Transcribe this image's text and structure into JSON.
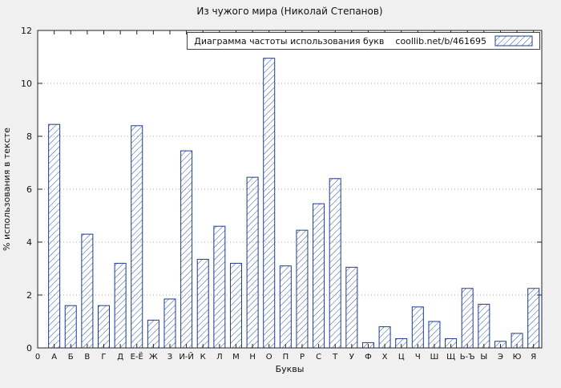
{
  "title": "Из чужого мира (Николай Степанов)",
  "legend": {
    "label": "Диаграмма частоты использования букв",
    "source": "coollib.net/b/461695"
  },
  "chart_data": {
    "type": "bar",
    "title": "Из чужого мира (Николай Степанов)",
    "xlabel": "Буквы",
    "ylabel": "% использования в тексте",
    "origin_label": "0",
    "ylim": [
      0,
      12
    ],
    "yticks": [
      0,
      2,
      4,
      6,
      8,
      10,
      12
    ],
    "grid": true,
    "legend_position": "top-right",
    "categories": [
      "А",
      "Б",
      "В",
      "Г",
      "Д",
      "Е-Ё",
      "Ж",
      "З",
      "И-Й",
      "К",
      "Л",
      "М",
      "Н",
      "О",
      "П",
      "Р",
      "С",
      "Т",
      "У",
      "Ф",
      "Х",
      "Ц",
      "Ч",
      "Ш",
      "Щ",
      "Ь-Ъ",
      "Ы",
      "Э",
      "Ю",
      "Я"
    ],
    "values": [
      8.45,
      1.6,
      4.3,
      1.6,
      3.2,
      8.4,
      1.05,
      1.85,
      7.45,
      3.35,
      4.6,
      3.2,
      6.45,
      10.95,
      3.1,
      4.45,
      5.45,
      6.4,
      3.05,
      0.2,
      0.8,
      0.35,
      1.55,
      1.0,
      0.35,
      2.25,
      1.65,
      0.25,
      0.55,
      2.25
    ],
    "colors": {
      "page_bg": "#f0f0f0",
      "plot_bg": "#ffffff",
      "axis": "#222222",
      "grid": "#aaaaaa",
      "bar_stroke": "#1b3d8f",
      "hatch": "#2d55a5",
      "text": "#111111"
    }
  }
}
